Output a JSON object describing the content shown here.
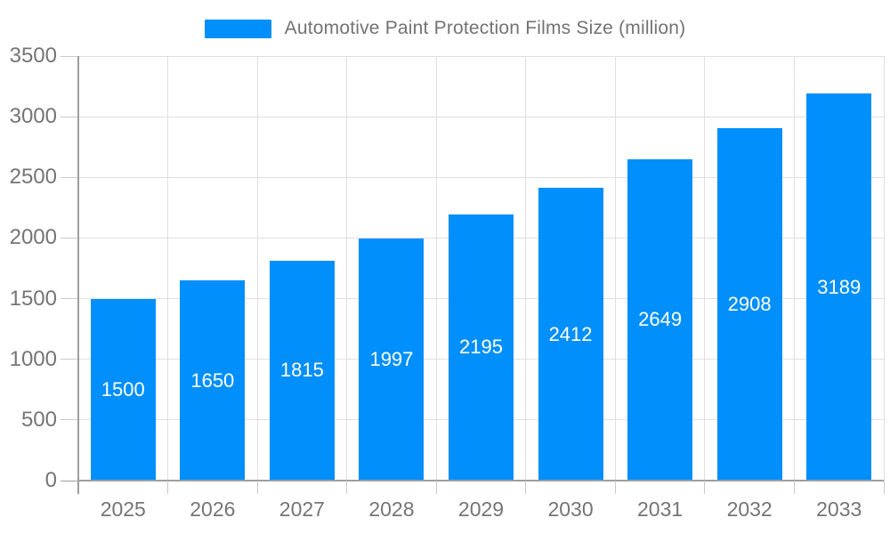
{
  "chart_data": {
    "type": "bar",
    "title": "Automotive Paint Protection Films Size (million)",
    "legend": "Automotive Paint Protection Films Size (million)",
    "legend_position": "top-center",
    "categories": [
      "2025",
      "2026",
      "2027",
      "2028",
      "2029",
      "2030",
      "2031",
      "2032",
      "2033"
    ],
    "values": [
      1500,
      1650,
      1815,
      1997,
      2195,
      2412,
      2649,
      2908,
      3189
    ],
    "xlabel": "",
    "ylabel": "",
    "ylim": [
      0,
      3500
    ],
    "ytick_step": 500,
    "ytick_labels": [
      "0",
      "500",
      "1000",
      "1500",
      "2000",
      "2500",
      "3000",
      "3500"
    ],
    "grid": "horizontal-and-vertical",
    "bar_labels_inside": true,
    "colors": {
      "bar": "#008FFB",
      "bar_label": "#ffffff",
      "axis_text": "#757575",
      "grid_line": "#e0e0e0",
      "axis_line": "#9e9e9e",
      "tick_line": "#c9c9c9",
      "background": "#ffffff"
    }
  }
}
